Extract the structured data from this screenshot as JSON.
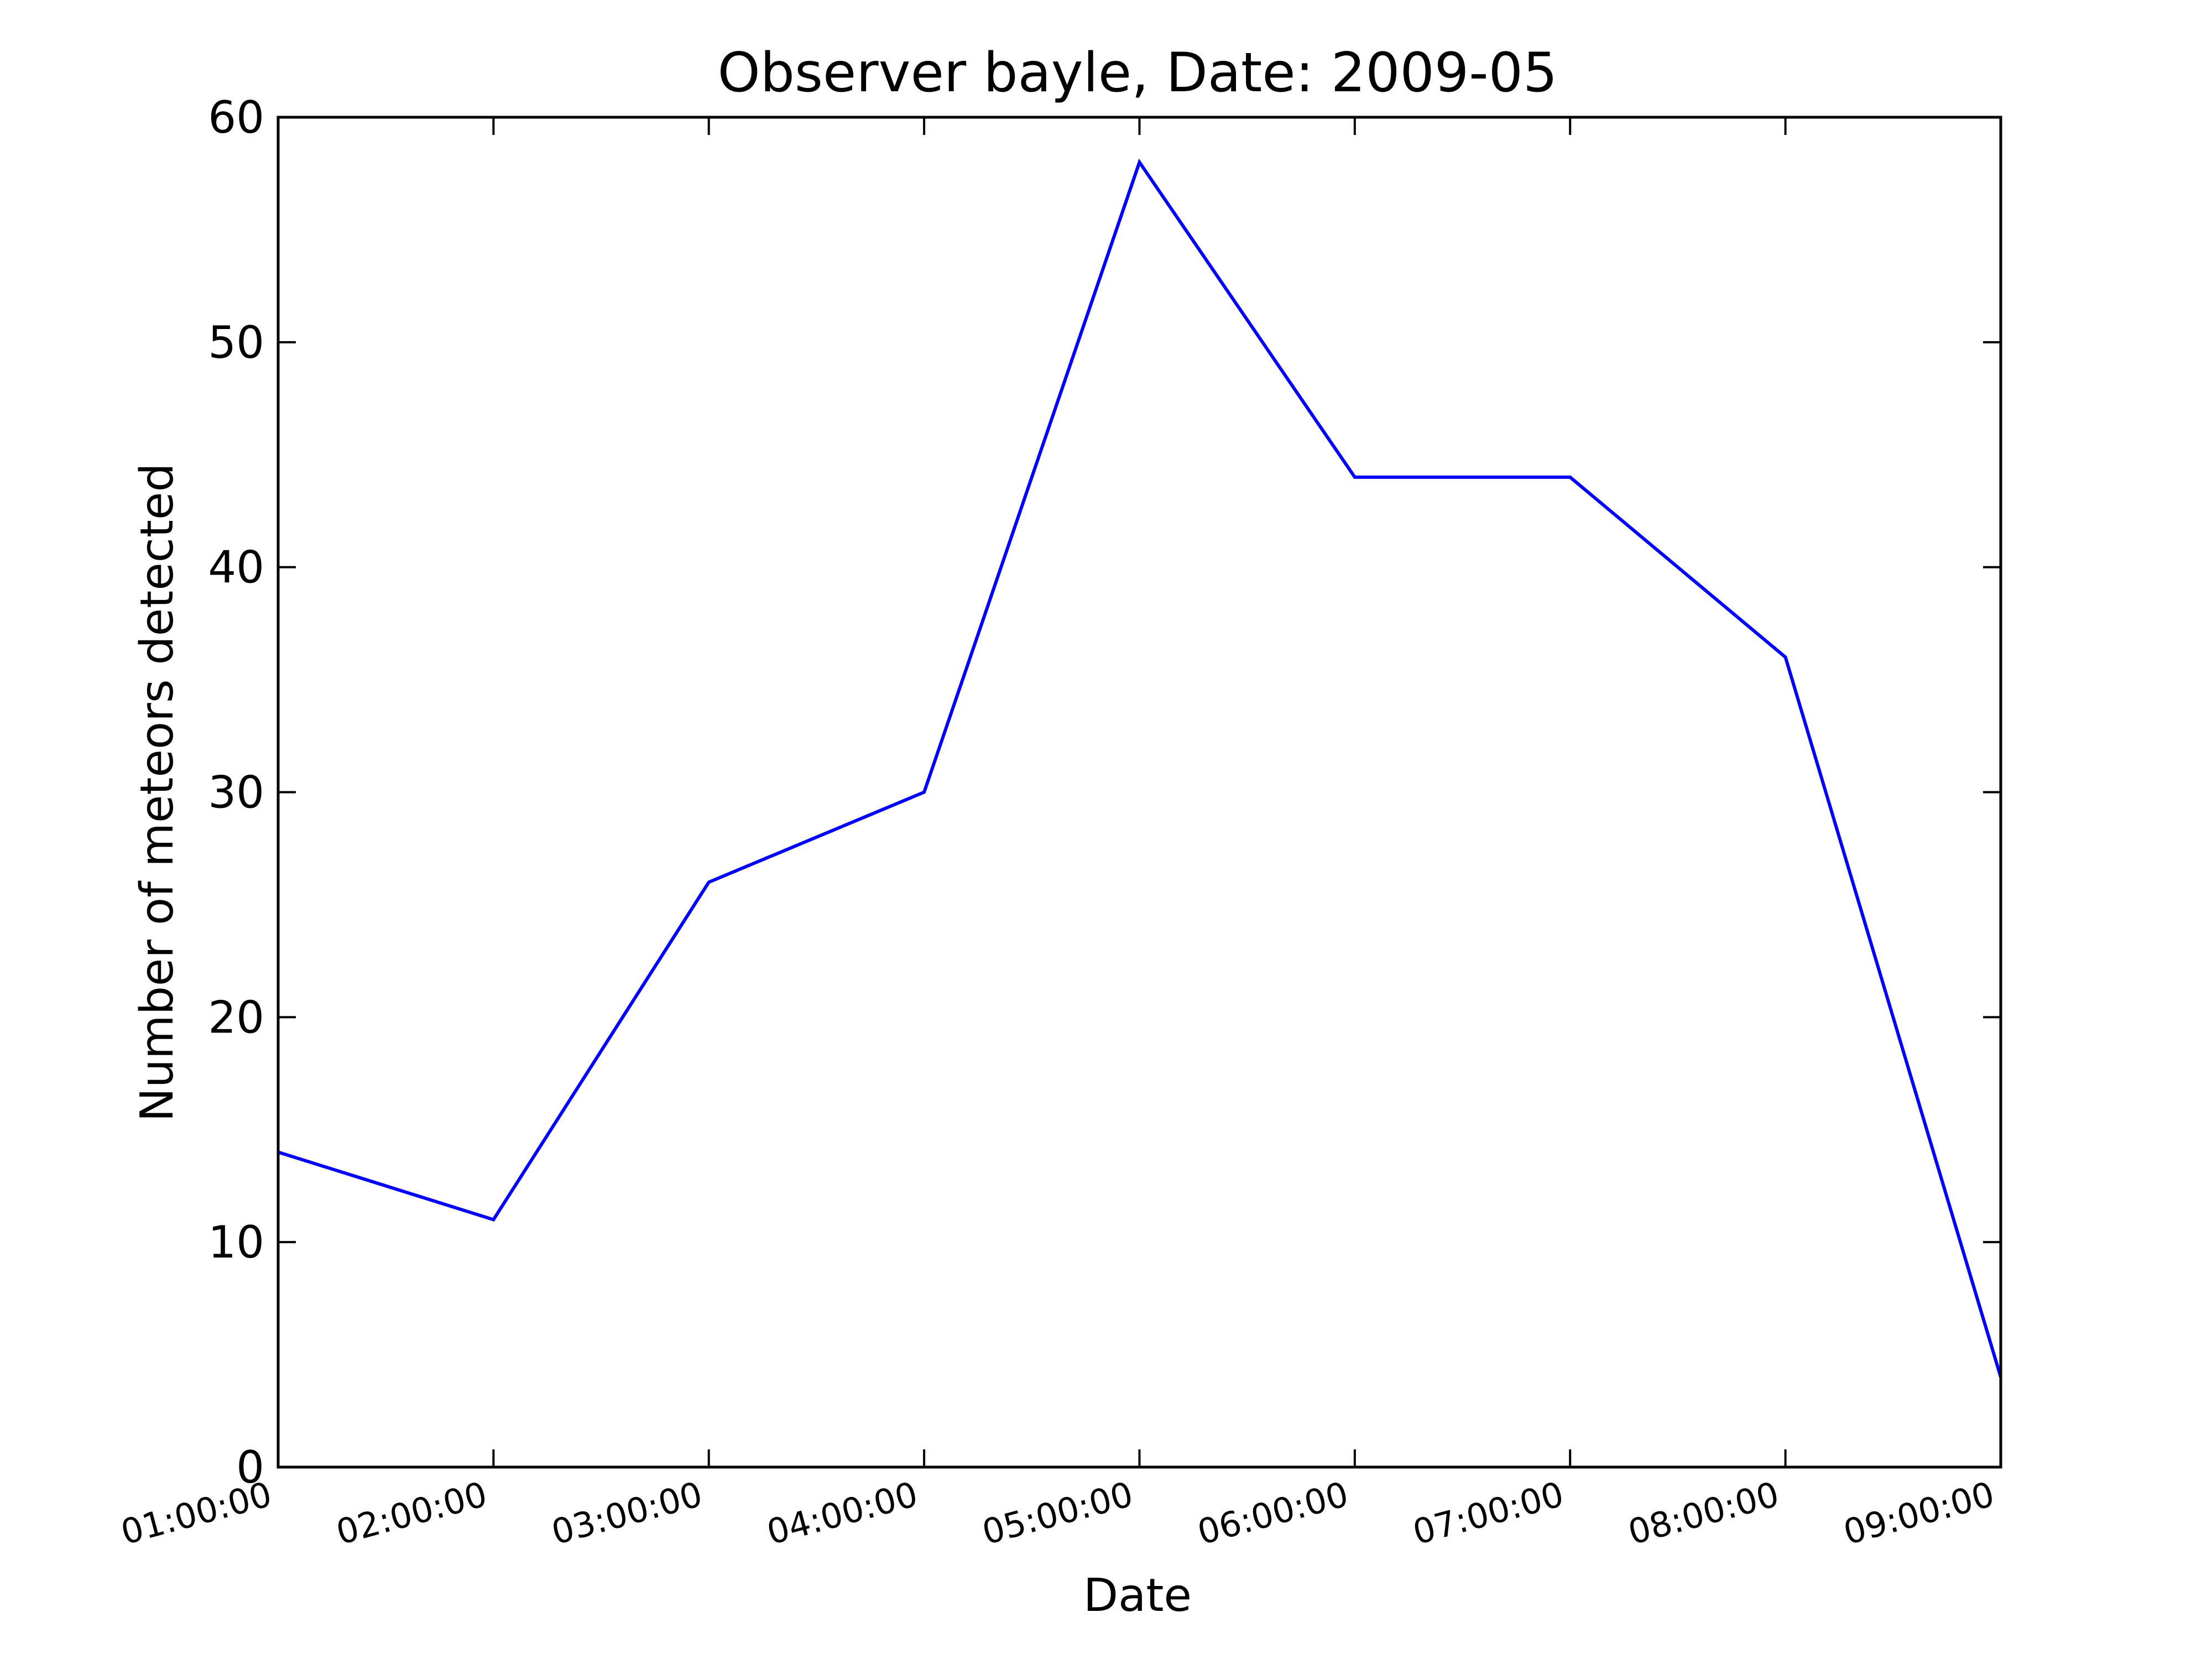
{
  "chart_data": {
    "type": "line",
    "title": "Observer bayle, Date: 2009-05",
    "xlabel": "Date",
    "ylabel": "Number of meteors detected",
    "x": [
      "01:00:00",
      "02:00:00",
      "03:00:00",
      "04:00:00",
      "05:00:00",
      "06:00:00",
      "07:00:00",
      "08:00:00",
      "09:00:00"
    ],
    "x_tick_labels": [
      "01:00:00",
      "02:00:00",
      "03:00:00",
      "04:00:00",
      "05:00:00",
      "06:00:00",
      "07:00:00",
      "08:00:00",
      "09:00:00"
    ],
    "series": [
      {
        "values": [
          14,
          11,
          26,
          30,
          58,
          44,
          44,
          36,
          4
        ],
        "color": "#0000ff"
      }
    ],
    "ylim": [
      0,
      60
    ],
    "y_ticks": [
      0,
      10,
      20,
      30,
      40,
      50,
      60
    ],
    "y_tick_labels": [
      "0",
      "10",
      "20",
      "30",
      "40",
      "50",
      "60"
    ],
    "grid": false,
    "legend": "none"
  }
}
